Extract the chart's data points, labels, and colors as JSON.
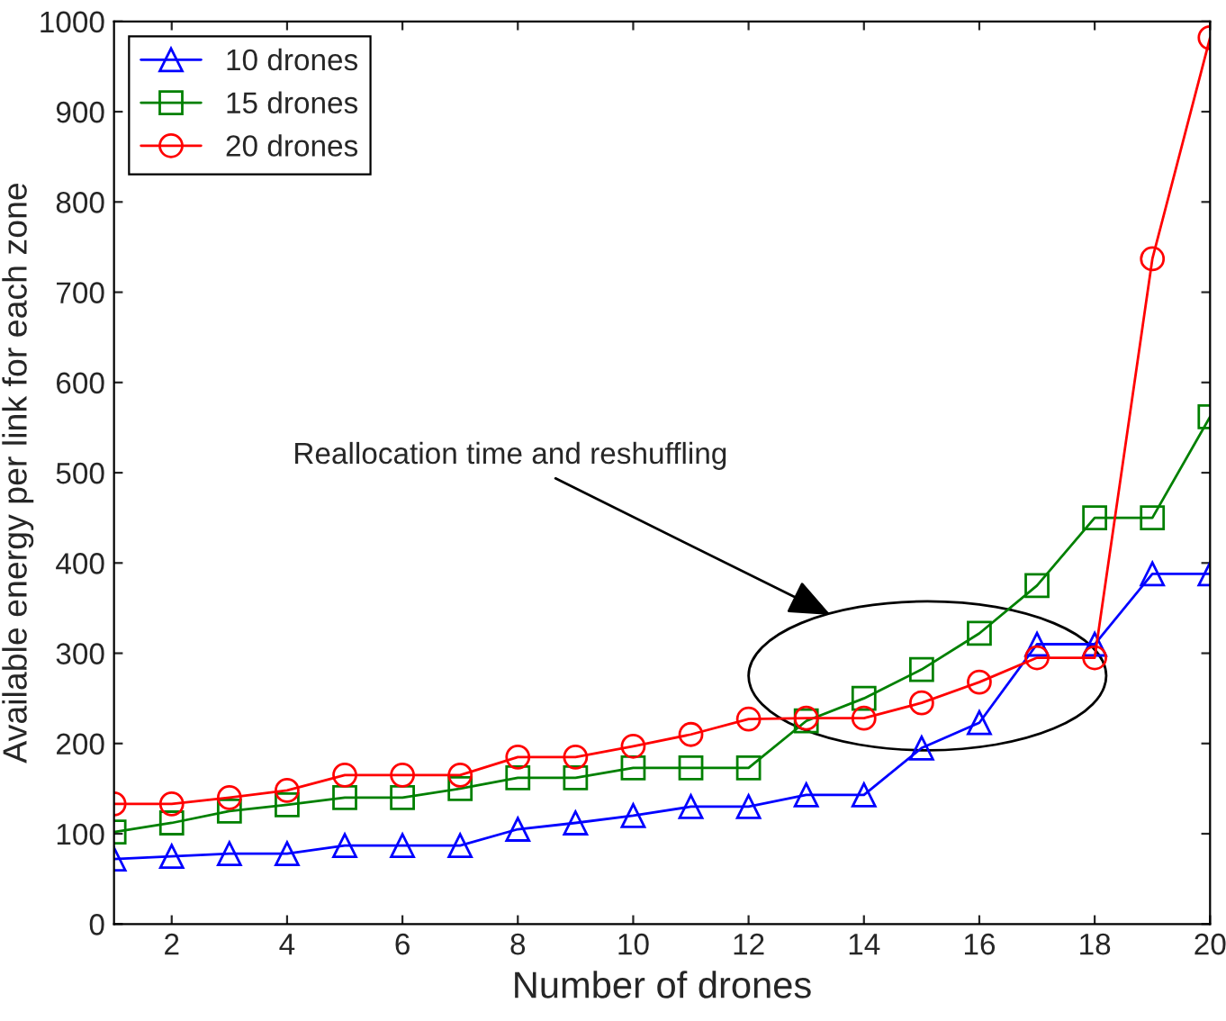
{
  "chart_data": {
    "type": "line",
    "xlabel": "Number of drones",
    "ylabel": "Available energy per link for each zone",
    "x": [
      1,
      2,
      3,
      4,
      5,
      6,
      7,
      8,
      9,
      10,
      11,
      12,
      13,
      14,
      15,
      16,
      17,
      18,
      19,
      20
    ],
    "series": [
      {
        "name": "10 drones",
        "color": "#0000ff",
        "marker": "triangle",
        "values": [
          72,
          75,
          78,
          78,
          87,
          87,
          87,
          105,
          112,
          120,
          130,
          130,
          143,
          143,
          195,
          223,
          310,
          310,
          388,
          388
        ]
      },
      {
        "name": "15 drones",
        "color": "#008000",
        "marker": "square",
        "values": [
          102,
          112,
          125,
          132,
          140,
          140,
          150,
          162,
          162,
          173,
          173,
          173,
          225,
          250,
          282,
          322,
          375,
          450,
          450,
          562
        ]
      },
      {
        "name": "20 drones",
        "color": "#ff0000",
        "marker": "circle",
        "values": [
          133,
          133,
          140,
          148,
          165,
          165,
          165,
          185,
          185,
          197,
          210,
          227,
          228,
          228,
          245,
          268,
          295,
          295,
          737,
          982
        ]
      }
    ],
    "annotations": [
      "Reallocation time and reshuffling"
    ],
    "xlim": [
      1,
      20
    ],
    "xticks": [
      2,
      4,
      6,
      8,
      10,
      12,
      14,
      16,
      18,
      20
    ],
    "ylim": [
      0,
      1000
    ],
    "yticks": [
      0,
      100,
      200,
      300,
      400,
      500,
      600,
      700,
      800,
      900,
      1000
    ],
    "grid": false,
    "legend": "top left",
    "line_style": "solid"
  }
}
